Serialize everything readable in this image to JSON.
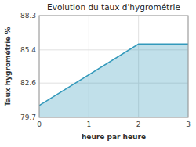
{
  "chart_data": {
    "type": "area",
    "title": "Evolution du taux d'hygrométrie",
    "xlabel": "heure par heure",
    "ylabel": "Taux hygrométrie %",
    "x": [
      0,
      2,
      3
    ],
    "values": [
      80.7,
      85.9,
      85.9
    ],
    "color": "#3399bb",
    "xlim": [
      0,
      3
    ],
    "ylim": [
      79.7,
      88.3
    ],
    "xticks": [
      0,
      1,
      2,
      3
    ],
    "yticks": [
      79.7,
      82.6,
      85.4,
      88.3
    ],
    "grid": true
  }
}
